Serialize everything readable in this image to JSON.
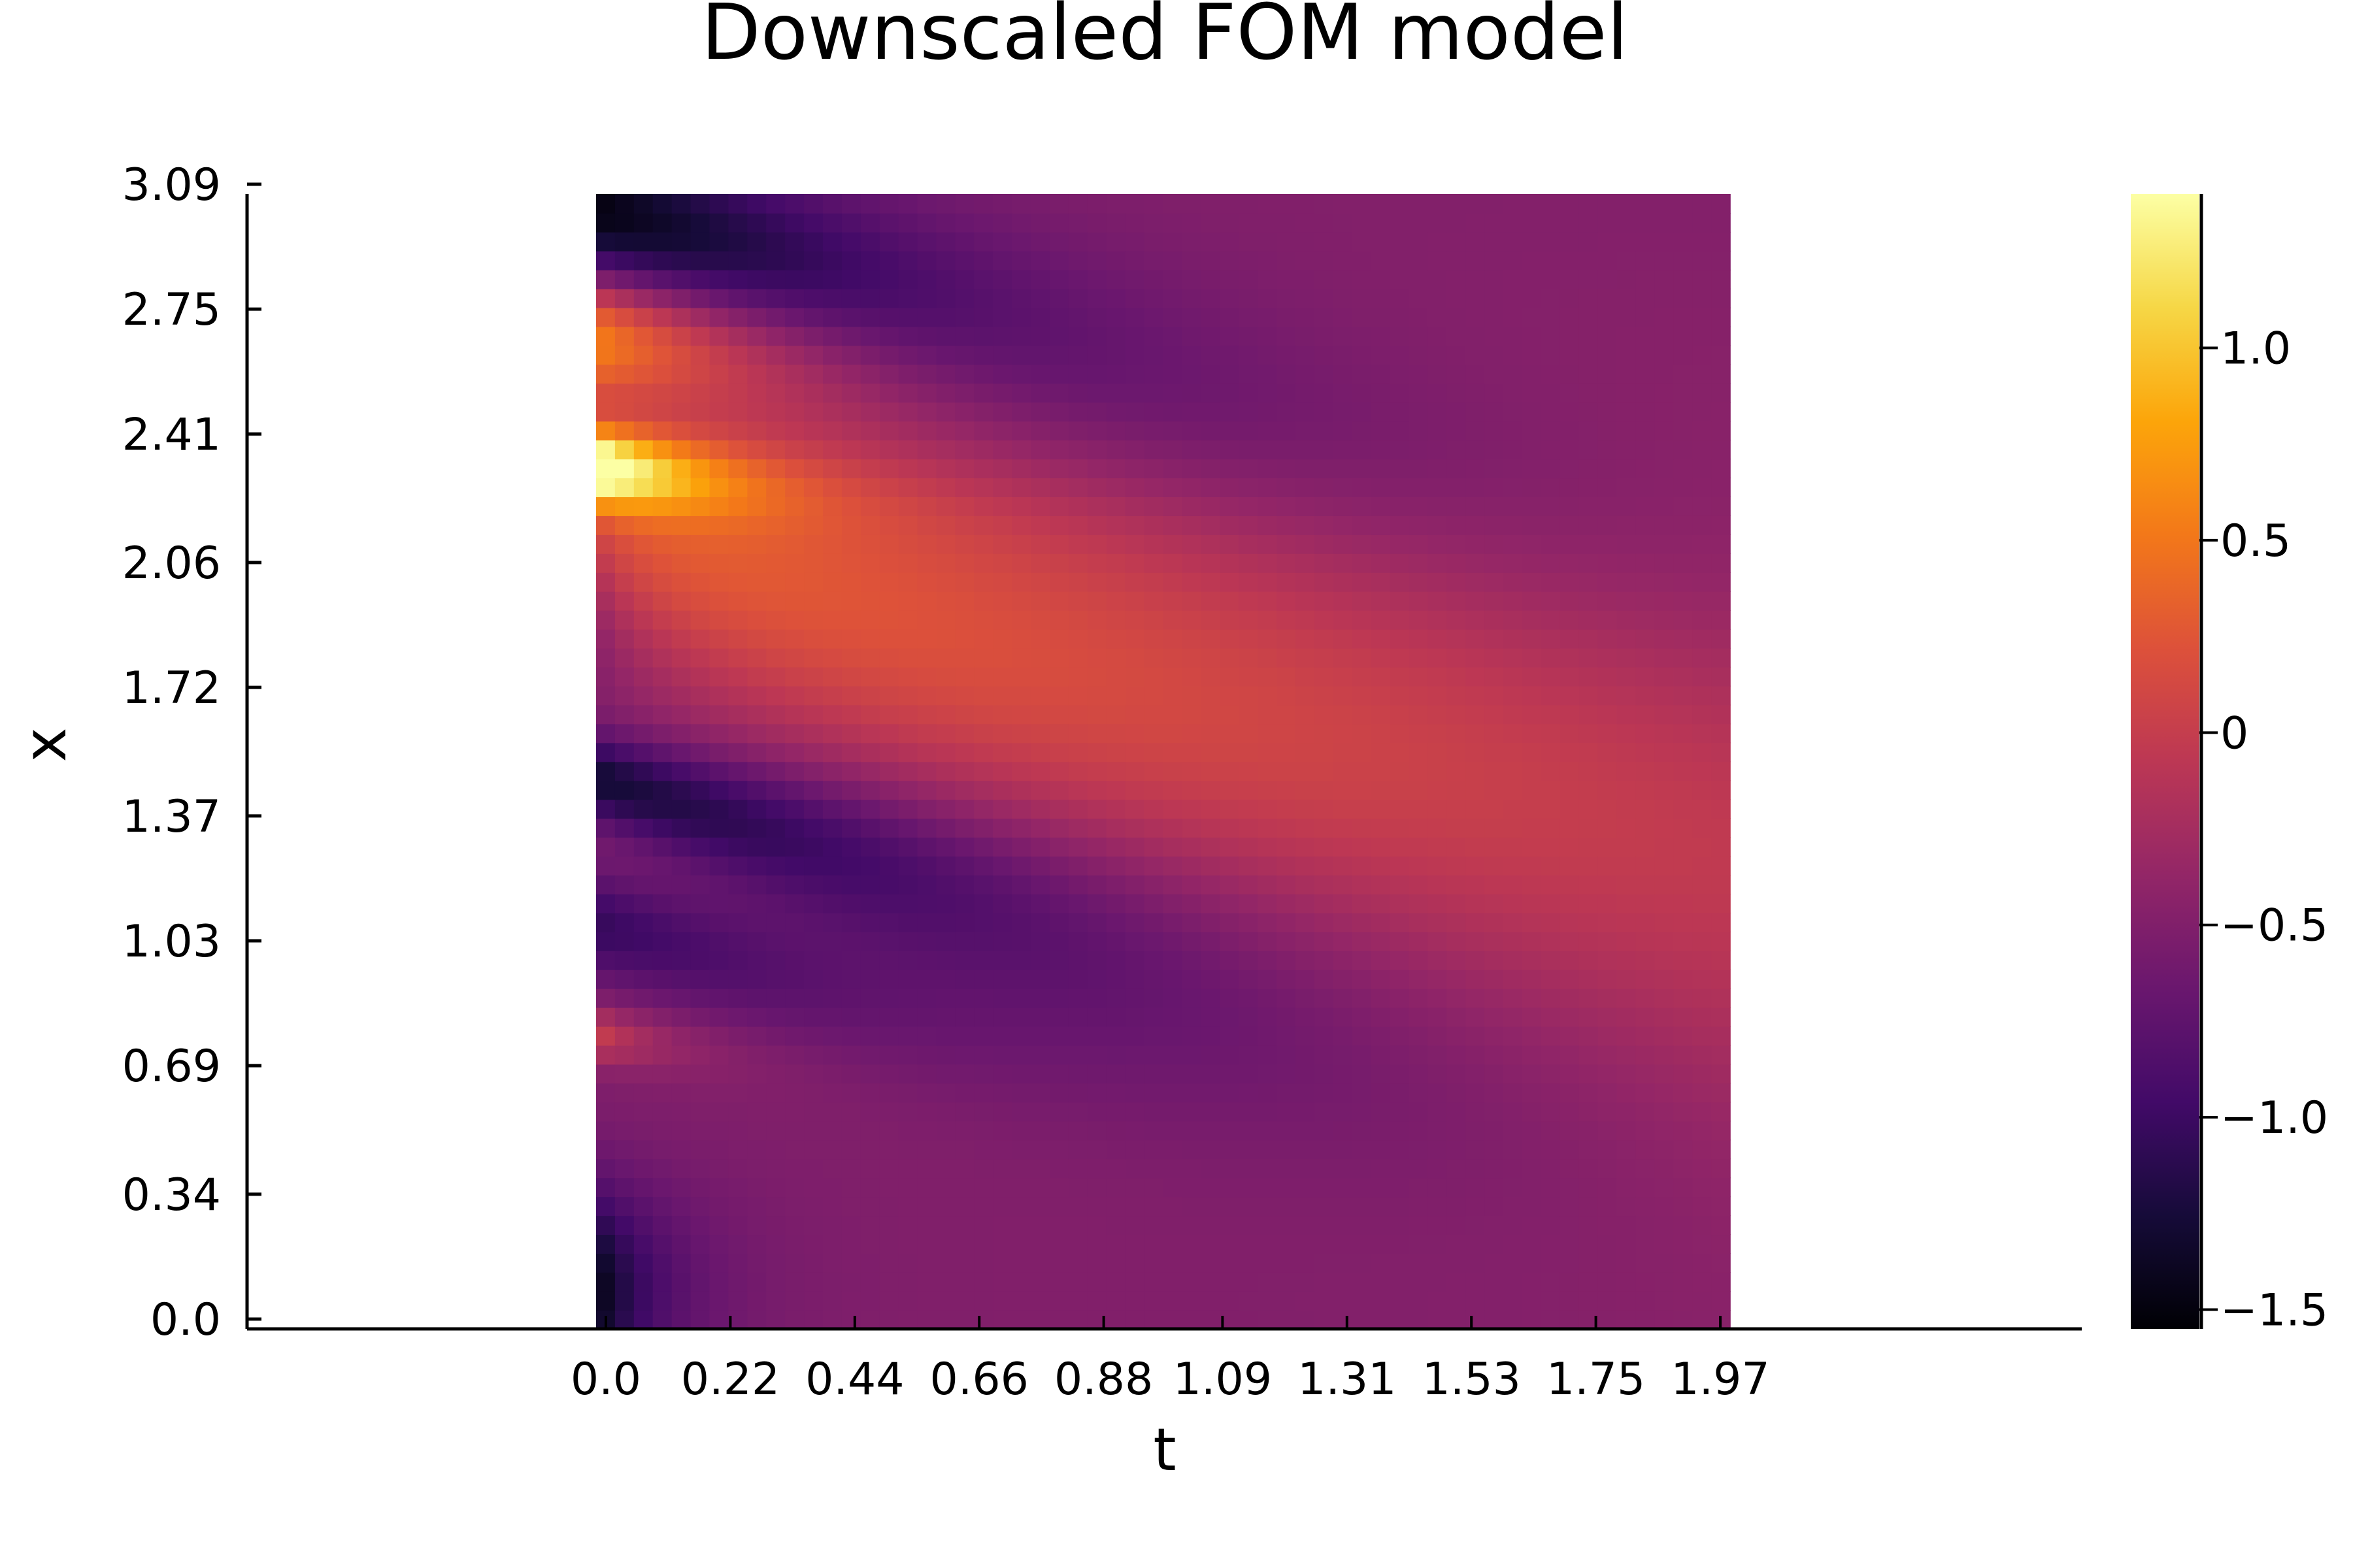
{
  "chart_data": {
    "type": "heatmap",
    "title": "Downscaled FOM model",
    "xlabel": "t",
    "ylabel": "x",
    "xlim": [
      0.0,
      1.97
    ],
    "ylim": [
      0.0,
      3.09
    ],
    "x_ticks": [
      "0.0",
      "0.22",
      "0.44",
      "0.66",
      "0.88",
      "1.09",
      "1.31",
      "1.53",
      "1.75",
      "1.97"
    ],
    "x_tick_values": [
      0.0,
      0.22,
      0.44,
      0.66,
      0.88,
      1.09,
      1.31,
      1.53,
      1.75,
      1.97
    ],
    "y_ticks": [
      "0.0",
      "0.34",
      "0.69",
      "1.03",
      "1.37",
      "1.72",
      "2.06",
      "2.41",
      "2.75",
      "3.09"
    ],
    "y_tick_values": [
      0.0,
      0.34,
      0.69,
      1.03,
      1.37,
      1.72,
      2.06,
      2.41,
      2.75,
      3.09
    ],
    "colorbar": {
      "colormap": "inferno",
      "range": [
        -1.55,
        1.4
      ],
      "ticks": [
        "−1.5",
        "−1.0",
        "−0.5",
        "0",
        "0.5",
        "1.0"
      ],
      "tick_values": [
        -1.5,
        -1.0,
        -0.5,
        0.0,
        0.5,
        1.0
      ]
    },
    "grid": false,
    "legend": "none",
    "grid_resolution": {
      "nt": 60,
      "nx": 60
    },
    "field_description_approx": [
      {
        "t": 0.0,
        "x": [
          0.0,
          0.3
        ],
        "value": -1.5
      },
      {
        "t": 0.0,
        "x": [
          0.75,
          0.85
        ],
        "value": 0.0
      },
      {
        "t": 0.0,
        "x": [
          1.4,
          1.6
        ],
        "value": -1.3
      },
      {
        "t": 0.0,
        "x": [
          2.25,
          2.35
        ],
        "value": 1.4
      },
      {
        "t": 0.0,
        "x": [
          2.6,
          2.85
        ],
        "value": 0.9
      },
      {
        "t": 0.1,
        "x": [
          3.0,
          3.09
        ],
        "value": -1.5
      },
      {
        "t": 1.97,
        "x": [
          0.0,
          3.09
        ],
        "value": -0.45
      }
    ]
  }
}
